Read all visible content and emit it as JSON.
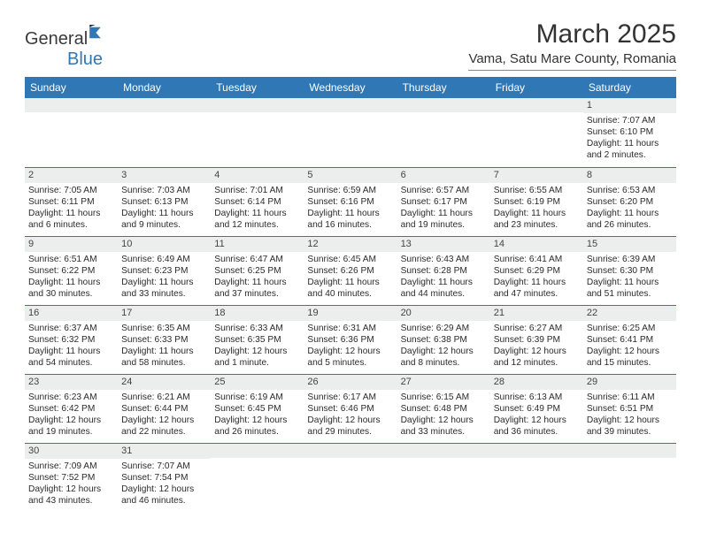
{
  "brand": {
    "word1": "General",
    "word2": "Blue"
  },
  "title": "March 2025",
  "location": "Vama, Satu Mare County, Romania",
  "colors": {
    "header_bg": "#2f77b5",
    "header_text": "#ffffff",
    "daynum_bg": "#eceded",
    "row_border": "#2f77b5",
    "text": "#2b2b2b"
  },
  "weekdays": [
    "Sunday",
    "Monday",
    "Tuesday",
    "Wednesday",
    "Thursday",
    "Friday",
    "Saturday"
  ],
  "weeks": [
    [
      null,
      null,
      null,
      null,
      null,
      null,
      {
        "n": "1",
        "sr": "Sunrise: 7:07 AM",
        "ss": "Sunset: 6:10 PM",
        "dl": "Daylight: 11 hours and 2 minutes."
      }
    ],
    [
      {
        "n": "2",
        "sr": "Sunrise: 7:05 AM",
        "ss": "Sunset: 6:11 PM",
        "dl": "Daylight: 11 hours and 6 minutes."
      },
      {
        "n": "3",
        "sr": "Sunrise: 7:03 AM",
        "ss": "Sunset: 6:13 PM",
        "dl": "Daylight: 11 hours and 9 minutes."
      },
      {
        "n": "4",
        "sr": "Sunrise: 7:01 AM",
        "ss": "Sunset: 6:14 PM",
        "dl": "Daylight: 11 hours and 12 minutes."
      },
      {
        "n": "5",
        "sr": "Sunrise: 6:59 AM",
        "ss": "Sunset: 6:16 PM",
        "dl": "Daylight: 11 hours and 16 minutes."
      },
      {
        "n": "6",
        "sr": "Sunrise: 6:57 AM",
        "ss": "Sunset: 6:17 PM",
        "dl": "Daylight: 11 hours and 19 minutes."
      },
      {
        "n": "7",
        "sr": "Sunrise: 6:55 AM",
        "ss": "Sunset: 6:19 PM",
        "dl": "Daylight: 11 hours and 23 minutes."
      },
      {
        "n": "8",
        "sr": "Sunrise: 6:53 AM",
        "ss": "Sunset: 6:20 PM",
        "dl": "Daylight: 11 hours and 26 minutes."
      }
    ],
    [
      {
        "n": "9",
        "sr": "Sunrise: 6:51 AM",
        "ss": "Sunset: 6:22 PM",
        "dl": "Daylight: 11 hours and 30 minutes."
      },
      {
        "n": "10",
        "sr": "Sunrise: 6:49 AM",
        "ss": "Sunset: 6:23 PM",
        "dl": "Daylight: 11 hours and 33 minutes."
      },
      {
        "n": "11",
        "sr": "Sunrise: 6:47 AM",
        "ss": "Sunset: 6:25 PM",
        "dl": "Daylight: 11 hours and 37 minutes."
      },
      {
        "n": "12",
        "sr": "Sunrise: 6:45 AM",
        "ss": "Sunset: 6:26 PM",
        "dl": "Daylight: 11 hours and 40 minutes."
      },
      {
        "n": "13",
        "sr": "Sunrise: 6:43 AM",
        "ss": "Sunset: 6:28 PM",
        "dl": "Daylight: 11 hours and 44 minutes."
      },
      {
        "n": "14",
        "sr": "Sunrise: 6:41 AM",
        "ss": "Sunset: 6:29 PM",
        "dl": "Daylight: 11 hours and 47 minutes."
      },
      {
        "n": "15",
        "sr": "Sunrise: 6:39 AM",
        "ss": "Sunset: 6:30 PM",
        "dl": "Daylight: 11 hours and 51 minutes."
      }
    ],
    [
      {
        "n": "16",
        "sr": "Sunrise: 6:37 AM",
        "ss": "Sunset: 6:32 PM",
        "dl": "Daylight: 11 hours and 54 minutes."
      },
      {
        "n": "17",
        "sr": "Sunrise: 6:35 AM",
        "ss": "Sunset: 6:33 PM",
        "dl": "Daylight: 11 hours and 58 minutes."
      },
      {
        "n": "18",
        "sr": "Sunrise: 6:33 AM",
        "ss": "Sunset: 6:35 PM",
        "dl": "Daylight: 12 hours and 1 minute."
      },
      {
        "n": "19",
        "sr": "Sunrise: 6:31 AM",
        "ss": "Sunset: 6:36 PM",
        "dl": "Daylight: 12 hours and 5 minutes."
      },
      {
        "n": "20",
        "sr": "Sunrise: 6:29 AM",
        "ss": "Sunset: 6:38 PM",
        "dl": "Daylight: 12 hours and 8 minutes."
      },
      {
        "n": "21",
        "sr": "Sunrise: 6:27 AM",
        "ss": "Sunset: 6:39 PM",
        "dl": "Daylight: 12 hours and 12 minutes."
      },
      {
        "n": "22",
        "sr": "Sunrise: 6:25 AM",
        "ss": "Sunset: 6:41 PM",
        "dl": "Daylight: 12 hours and 15 minutes."
      }
    ],
    [
      {
        "n": "23",
        "sr": "Sunrise: 6:23 AM",
        "ss": "Sunset: 6:42 PM",
        "dl": "Daylight: 12 hours and 19 minutes."
      },
      {
        "n": "24",
        "sr": "Sunrise: 6:21 AM",
        "ss": "Sunset: 6:44 PM",
        "dl": "Daylight: 12 hours and 22 minutes."
      },
      {
        "n": "25",
        "sr": "Sunrise: 6:19 AM",
        "ss": "Sunset: 6:45 PM",
        "dl": "Daylight: 12 hours and 26 minutes."
      },
      {
        "n": "26",
        "sr": "Sunrise: 6:17 AM",
        "ss": "Sunset: 6:46 PM",
        "dl": "Daylight: 12 hours and 29 minutes."
      },
      {
        "n": "27",
        "sr": "Sunrise: 6:15 AM",
        "ss": "Sunset: 6:48 PM",
        "dl": "Daylight: 12 hours and 33 minutes."
      },
      {
        "n": "28",
        "sr": "Sunrise: 6:13 AM",
        "ss": "Sunset: 6:49 PM",
        "dl": "Daylight: 12 hours and 36 minutes."
      },
      {
        "n": "29",
        "sr": "Sunrise: 6:11 AM",
        "ss": "Sunset: 6:51 PM",
        "dl": "Daylight: 12 hours and 39 minutes."
      }
    ],
    [
      {
        "n": "30",
        "sr": "Sunrise: 7:09 AM",
        "ss": "Sunset: 7:52 PM",
        "dl": "Daylight: 12 hours and 43 minutes."
      },
      {
        "n": "31",
        "sr": "Sunrise: 7:07 AM",
        "ss": "Sunset: 7:54 PM",
        "dl": "Daylight: 12 hours and 46 minutes."
      },
      null,
      null,
      null,
      null,
      null
    ]
  ]
}
